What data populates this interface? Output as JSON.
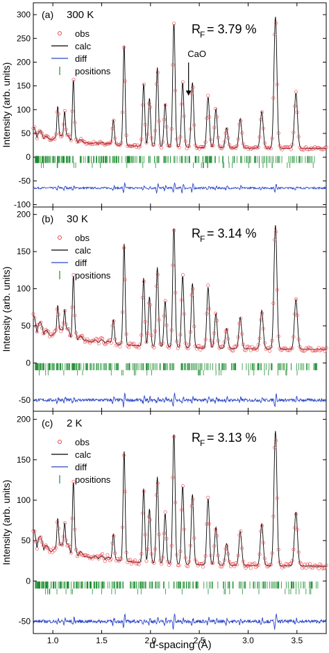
{
  "figure": {
    "xlabel": "d-spacing (Å)",
    "ylabel": "Intensity (arb. units)"
  },
  "chart_data": [
    {
      "type": "line",
      "panel_label": "(a)",
      "temperature": "300 K",
      "rf_text": "R",
      "rf_sub": "F",
      "rf_value": " = 3.79 %",
      "annotation": "CaO",
      "annotation_x": 2.39,
      "ylim": [
        -105,
        325
      ],
      "yticks": [
        -100,
        -50,
        0,
        50,
        100,
        150,
        200,
        250,
        300
      ],
      "xlim": [
        0.8,
        3.8
      ],
      "xticks": [
        1.0,
        1.5,
        2.0,
        2.5,
        3.0,
        3.5
      ],
      "baseline": 18,
      "diff_offset": -65,
      "phase1_y": -5,
      "phase2_y": -17,
      "legend": [
        "obs",
        "calc",
        "diff",
        "positions"
      ],
      "peaks": [
        [
          1.73,
          230
        ],
        [
          1.93,
          150
        ],
        [
          2.07,
          185
        ],
        [
          2.24,
          280
        ],
        [
          2.33,
          155
        ],
        [
          2.43,
          155
        ],
        [
          2.59,
          125
        ],
        [
          3.28,
          295
        ],
        [
          3.49,
          135
        ],
        [
          1.21,
          140
        ],
        [
          1.05,
          90
        ],
        [
          1.12,
          80
        ],
        [
          1.62,
          70
        ],
        [
          1.99,
          120
        ],
        [
          2.15,
          110
        ],
        [
          2.67,
          100
        ],
        [
          2.92,
          80
        ],
        [
          3.14,
          95
        ],
        [
          2.78,
          60
        ]
      ]
    },
    {
      "type": "line",
      "panel_label": "(b)",
      "temperature": "30 K",
      "rf_text": "R",
      "rf_sub": "F",
      "rf_value": " = 3.14 %",
      "ylim": [
        -65,
        210
      ],
      "yticks": [
        -50,
        0,
        50,
        100,
        150,
        200
      ],
      "xlim": [
        0.8,
        3.8
      ],
      "xticks": [
        1.0,
        1.5,
        2.0,
        2.5,
        3.0,
        3.5
      ],
      "baseline": 18,
      "diff_offset": -50,
      "phase1_y": -5,
      "phase2_y": -13,
      "legend": [
        "obs",
        "calc",
        "diff",
        "positions"
      ],
      "peaks": [
        [
          1.73,
          155
        ],
        [
          1.93,
          110
        ],
        [
          2.07,
          125
        ],
        [
          2.24,
          180
        ],
        [
          2.33,
          115
        ],
        [
          2.43,
          105
        ],
        [
          2.59,
          100
        ],
        [
          3.28,
          185
        ],
        [
          3.49,
          85
        ],
        [
          1.21,
          95
        ],
        [
          1.05,
          60
        ],
        [
          1.12,
          55
        ],
        [
          1.62,
          50
        ],
        [
          1.99,
          85
        ],
        [
          2.15,
          80
        ],
        [
          2.67,
          65
        ],
        [
          2.92,
          60
        ],
        [
          3.14,
          70
        ],
        [
          2.78,
          45
        ]
      ]
    },
    {
      "type": "line",
      "panel_label": "(c)",
      "temperature": "2 K",
      "rf_text": "R",
      "rf_sub": "F",
      "rf_value": " = 3.13 %",
      "ylim": [
        -65,
        210
      ],
      "yticks": [
        -50,
        0,
        50,
        100,
        150,
        200
      ],
      "xlim": [
        0.8,
        3.8
      ],
      "xticks": [
        1.0,
        1.5,
        2.0,
        2.5,
        3.0,
        3.5
      ],
      "baseline": 18,
      "diff_offset": -50,
      "phase1_y": -5,
      "phase2_y": -13,
      "legend": [
        "obs",
        "calc",
        "diff",
        "positions"
      ],
      "peaks": [
        [
          1.73,
          155
        ],
        [
          1.93,
          110
        ],
        [
          2.07,
          125
        ],
        [
          2.24,
          180
        ],
        [
          2.33,
          115
        ],
        [
          2.43,
          105
        ],
        [
          2.59,
          100
        ],
        [
          3.28,
          185
        ],
        [
          3.49,
          85
        ],
        [
          1.21,
          100
        ],
        [
          1.05,
          60
        ],
        [
          1.12,
          55
        ],
        [
          1.62,
          50
        ],
        [
          1.99,
          85
        ],
        [
          2.15,
          80
        ],
        [
          2.67,
          65
        ],
        [
          2.92,
          60
        ],
        [
          3.14,
          70
        ],
        [
          2.78,
          45
        ]
      ]
    }
  ],
  "colors": {
    "obs": "#e8424a",
    "calc": "#000000",
    "diff": "#2a45c8",
    "positions": "#1a8c2e"
  }
}
